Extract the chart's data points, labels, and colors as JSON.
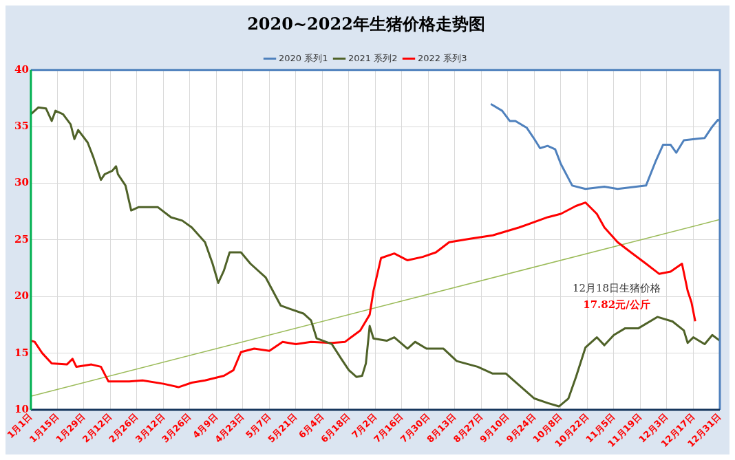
{
  "chart_data": {
    "type": "line",
    "title": "2020~2022年生猪价格走势图",
    "xlim": [
      "--01-01",
      "--12-31"
    ],
    "xticks": [
      {
        "value": "--01-01",
        "label": "1月1日"
      },
      {
        "value": "--01-15",
        "label": "1月15日"
      },
      {
        "value": "--01-29",
        "label": "1月29日"
      },
      {
        "value": "--02-12",
        "label": "2月12日"
      },
      {
        "value": "--02-26",
        "label": "2月26日"
      },
      {
        "value": "--03-12",
        "label": "3月12日"
      },
      {
        "value": "--03-26",
        "label": "3月26日"
      },
      {
        "value": "--04-09",
        "label": "4月9日"
      },
      {
        "value": "--04-23",
        "label": "4月23日"
      },
      {
        "value": "--05-07",
        "label": "5月7日"
      },
      {
        "value": "--05-21",
        "label": "5月21日"
      },
      {
        "value": "--06-04",
        "label": "6月4日"
      },
      {
        "value": "--06-18",
        "label": "6月18日"
      },
      {
        "value": "--07-02",
        "label": "7月2日"
      },
      {
        "value": "--07-16",
        "label": "7月16日"
      },
      {
        "value": "--07-30",
        "label": "7月30日"
      },
      {
        "value": "--08-13",
        "label": "8月13日"
      },
      {
        "value": "--08-27",
        "label": "8月27日"
      },
      {
        "value": "--09-10",
        "label": "9月10日"
      },
      {
        "value": "--09-24",
        "label": "9月24日"
      },
      {
        "value": "--10-08",
        "label": "10月8日"
      },
      {
        "value": "--10-22",
        "label": "10月22日"
      },
      {
        "value": "--11-05",
        "label": "11月5日"
      },
      {
        "value": "--11-19",
        "label": "11月19日"
      },
      {
        "value": "--12-03",
        "label": "12月3日"
      },
      {
        "value": "--12-17",
        "label": "12月17日"
      },
      {
        "value": "--12-31",
        "label": "12月31日"
      }
    ],
    "ylim": [
      10,
      40
    ],
    "yticks": [
      10,
      15,
      20,
      25,
      30,
      35,
      40
    ],
    "grid": true,
    "legend": "top",
    "marker": "none",
    "line_style": "solid",
    "series": [
      {
        "name": "2020 系列1",
        "color": "#4f81bd",
        "x": [
          "--09-01",
          "--09-07",
          "--09-11",
          "--09-14",
          "--09-20",
          "--09-24",
          "--09-27",
          "--10-01",
          "--10-05",
          "--10-08",
          "--10-14",
          "--10-21",
          "--10-31",
          "--11-07",
          "--11-22",
          "--11-27",
          "--12-01",
          "--12-05",
          "--12-08",
          "--12-12",
          "--12-23",
          "--12-27",
          "--12-30",
          "--12-31"
        ],
        "values": [
          37.0,
          36.4,
          35.5,
          35.5,
          34.9,
          33.9,
          33.1,
          33.3,
          33.0,
          31.7,
          29.8,
          29.5,
          29.7,
          29.5,
          29.8,
          31.9,
          33.4,
          33.4,
          32.7,
          33.8,
          34.0,
          35.0,
          35.6,
          35.5
        ]
      },
      {
        "name": "2021 系列2",
        "color": "#4f6228",
        "x": [
          "--01-01",
          "--01-05",
          "--01-09",
          "--01-12",
          "--01-14",
          "--01-18",
          "--01-22",
          "--01-24",
          "--01-26",
          "--01-31",
          "--02-03",
          "--02-07",
          "--02-09",
          "--02-13",
          "--02-15",
          "--02-16",
          "--02-20",
          "--02-23",
          "--02-27",
          "--03-09",
          "--03-16",
          "--03-22",
          "--03-27",
          "--04-03",
          "--04-07",
          "--04-10",
          "--04-13",
          "--04-16",
          "--04-22",
          "--04-27",
          "--05-05",
          "--05-13",
          "--05-18",
          "--05-25",
          "--05-29",
          "--06-01",
          "--06-09",
          "--06-14",
          "--06-18",
          "--06-22",
          "--06-25",
          "--06-27",
          "--06-29",
          "--07-01",
          "--07-08",
          "--07-12",
          "--07-19",
          "--07-23",
          "--07-29",
          "--08-07",
          "--08-14",
          "--08-25",
          "--09-02",
          "--09-09",
          "--09-13",
          "--09-24",
          "--10-01",
          "--10-07",
          "--10-12",
          "--10-16",
          "--10-21",
          "--10-27",
          "--10-31",
          "--11-05",
          "--11-11",
          "--11-18",
          "--11-28",
          "--12-06",
          "--12-12",
          "--12-14",
          "--12-17",
          "--12-23",
          "--12-27",
          "--12-31"
        ],
        "values": [
          36.1,
          36.7,
          36.6,
          35.5,
          36.4,
          36.1,
          35.2,
          33.9,
          34.7,
          33.6,
          32.3,
          30.3,
          30.8,
          31.1,
          31.5,
          30.8,
          29.8,
          27.6,
          27.9,
          27.9,
          27.0,
          26.7,
          26.1,
          24.8,
          22.9,
          21.2,
          22.3,
          23.9,
          23.9,
          22.9,
          21.7,
          19.2,
          18.9,
          18.5,
          17.9,
          16.3,
          15.8,
          14.5,
          13.5,
          12.9,
          13.0,
          14.1,
          17.4,
          16.3,
          16.1,
          16.4,
          15.4,
          16.0,
          15.4,
          15.4,
          14.3,
          13.8,
          13.2,
          13.2,
          12.6,
          11.0,
          10.6,
          10.3,
          11.0,
          12.9,
          15.5,
          16.4,
          15.7,
          16.6,
          17.2,
          17.2,
          18.2,
          17.8,
          17.0,
          15.9,
          16.4,
          15.8,
          16.6,
          16.1
        ]
      },
      {
        "name": "2022 系列3",
        "color": "#ff0000",
        "x": [
          "--01-01",
          "--01-03",
          "--01-07",
          "--01-12",
          "--01-20",
          "--01-23",
          "--01-25",
          "--02-02",
          "--02-07",
          "--02-11",
          "--02-22",
          "--03-01",
          "--03-12",
          "--03-20",
          "--03-27",
          "--04-03",
          "--04-13",
          "--04-18",
          "--04-22",
          "--04-29",
          "--05-07",
          "--05-14",
          "--05-21",
          "--05-29",
          "--06-09",
          "--06-16",
          "--06-24",
          "--06-29",
          "--07-01",
          "--07-05",
          "--07-12",
          "--07-19",
          "--07-27",
          "--08-03",
          "--08-10",
          "--08-21",
          "--09-02",
          "--09-16",
          "--10-01",
          "--10-08",
          "--10-16",
          "--10-21",
          "--10-27",
          "--10-31",
          "--11-07",
          "--11-14",
          "--11-22",
          "--11-29",
          "--12-05",
          "--12-11",
          "--12-14",
          "--12-16",
          "--12-18"
        ],
        "values": [
          16.1,
          16.0,
          15.0,
          14.1,
          14.0,
          14.5,
          13.8,
          14.0,
          13.8,
          12.5,
          12.5,
          12.6,
          12.3,
          12.0,
          12.4,
          12.6,
          13.0,
          13.5,
          15.1,
          15.4,
          15.2,
          16.0,
          15.8,
          16.0,
          15.9,
          16.0,
          17.0,
          18.4,
          20.5,
          23.4,
          23.8,
          23.2,
          23.5,
          23.9,
          24.8,
          25.1,
          25.4,
          26.1,
          27.0,
          27.3,
          28.0,
          28.3,
          27.3,
          26.1,
          24.8,
          23.9,
          22.9,
          22.0,
          22.2,
          22.9,
          20.5,
          19.5,
          17.82
        ]
      },
      {
        "type": "line",
        "color": "#9bbb59",
        "x": [
          "--01-01",
          "--12-31"
        ],
        "values": [
          11.2,
          26.8
        ]
      }
    ],
    "annotations": [
      "12月18日生猪价格",
      "17.82元/公斤"
    ]
  }
}
